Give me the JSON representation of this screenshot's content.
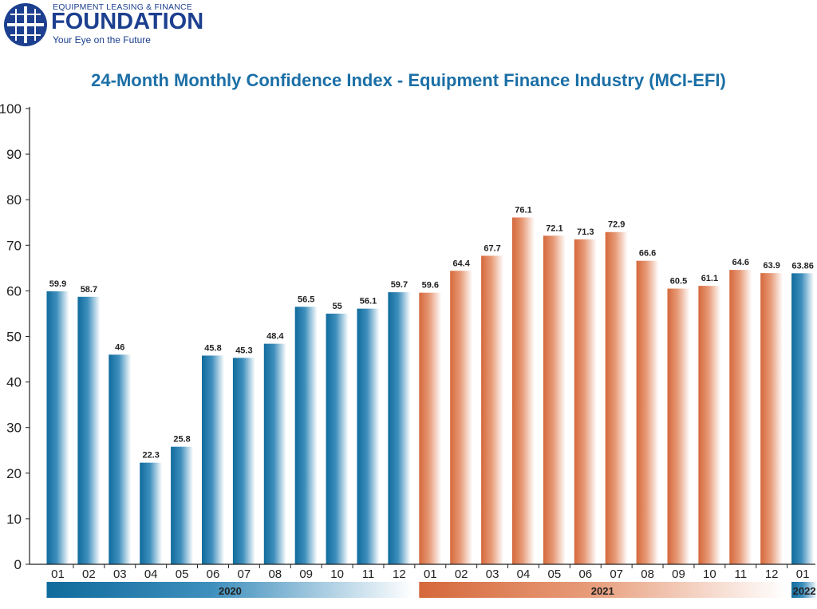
{
  "logo": {
    "small": "EQUIPMENT LEASING & FINANCE",
    "big": "FOUNDATION",
    "tagline": "Your Eye on the Future"
  },
  "colors": {
    "blue": "#1b6fa6",
    "orange": "#d5683b",
    "logo": "#1c3f8f"
  },
  "chart_data": {
    "type": "bar",
    "title": "24-Month Monthly Confidence Index - Equipment Finance Industry (MCI-EFI)",
    "xlabel": "",
    "ylabel": "",
    "ylim": [
      0,
      100
    ],
    "yticks": [
      0,
      10,
      20,
      30,
      40,
      50,
      60,
      70,
      80,
      90,
      100
    ],
    "grid": false,
    "categories": [
      "01",
      "02",
      "03",
      "04",
      "05",
      "06",
      "07",
      "08",
      "09",
      "10",
      "11",
      "12",
      "01",
      "02",
      "03",
      "04",
      "05",
      "06",
      "07",
      "08",
      "09",
      "10",
      "11",
      "12",
      "01"
    ],
    "values": [
      59.9,
      58.7,
      46,
      22.3,
      25.8,
      45.8,
      45.3,
      48.4,
      56.5,
      55,
      56.1,
      59.7,
      59.6,
      64.4,
      67.7,
      76.1,
      72.1,
      71.3,
      72.9,
      66.6,
      60.5,
      61.1,
      64.6,
      63.9,
      63.86
    ],
    "value_labels": [
      "59.9",
      "58.7",
      "46",
      "22.3",
      "25.8",
      "45.8",
      "45.3",
      "48.4",
      "56.5",
      "55",
      "56.1",
      "59.7",
      "59.6",
      "64.4",
      "67.7",
      "76.1",
      "72.1",
      "71.3",
      "72.9",
      "66.6",
      "60.5",
      "61.1",
      "64.6",
      "63.9",
      "63.86"
    ],
    "groups": [
      {
        "label": "2020",
        "start": 0,
        "end": 11,
        "color": "blue"
      },
      {
        "label": "2021",
        "start": 12,
        "end": 23,
        "color": "orange"
      },
      {
        "label": "2022",
        "start": 24,
        "end": 24,
        "color": "blue"
      }
    ]
  }
}
